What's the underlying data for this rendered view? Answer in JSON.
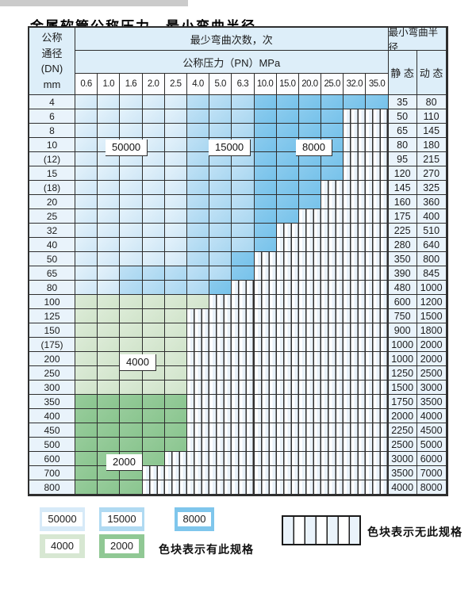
{
  "title": "金属软管公称压力、最小弯曲半径",
  "table": {
    "header": {
      "dn_label_lines": [
        "公称",
        "通径",
        "(DN)",
        "mm"
      ],
      "bend_cycles_label": "最少弯曲次数，次",
      "pressure_label": "公称压力（PN）MPa",
      "min_bend_radius_label": "最小弯曲半径",
      "static_label": "静 态",
      "dynamic_label": "动 态",
      "pressures": [
        "0.6",
        "1.0",
        "1.6",
        "2.0",
        "2.5",
        "4.0",
        "5.0",
        "6.3",
        "10.0",
        "15.0",
        "20.0",
        "25.0",
        "32.0",
        "35.0"
      ]
    },
    "class_key": {
      "A": "50000次弯曲",
      "B": "15000次弯曲",
      "C": "8000次弯曲",
      "D": "4000次弯曲",
      "E": "2000次弯曲",
      "X": "无此规格"
    },
    "rows": [
      {
        "dn": "4",
        "pattern": "AAAAABBBCCCCCC",
        "static": "35",
        "dynamic": "80"
      },
      {
        "dn": "6",
        "pattern": "AAAAABBBCCCCXX",
        "static": "50",
        "dynamic": "110"
      },
      {
        "dn": "8",
        "pattern": "AAAAABBBCCCCXX",
        "static": "65",
        "dynamic": "145"
      },
      {
        "dn": "10",
        "pattern": "AAAAABBBCCCCXX",
        "static": "80",
        "dynamic": "180"
      },
      {
        "dn": "(12)",
        "pattern": "AAAAABBBCCCCXX",
        "static": "95",
        "dynamic": "215"
      },
      {
        "dn": "15",
        "pattern": "AAAAABBBCCCCXX",
        "static": "120",
        "dynamic": "270"
      },
      {
        "dn": "(18)",
        "pattern": "AAAAABBBCCCXXX",
        "static": "145",
        "dynamic": "325"
      },
      {
        "dn": "20",
        "pattern": "AAAAABBBCCCXXX",
        "static": "160",
        "dynamic": "360"
      },
      {
        "dn": "25",
        "pattern": "AAAAABBBCCXXXX",
        "static": "175",
        "dynamic": "400"
      },
      {
        "dn": "32",
        "pattern": "AAAAABBBCXXXXX",
        "static": "225",
        "dynamic": "510"
      },
      {
        "dn": "40",
        "pattern": "AAAAABBBCXXXXX",
        "static": "280",
        "dynamic": "640"
      },
      {
        "dn": "50",
        "pattern": "AAAAABBCXXXXXX",
        "static": "350",
        "dynamic": "800"
      },
      {
        "dn": "65",
        "pattern": "AABBBBBCXXXXXX",
        "static": "390",
        "dynamic": "845"
      },
      {
        "dn": "80",
        "pattern": "AABBBBCXXXXXXX",
        "static": "480",
        "dynamic": "1000"
      },
      {
        "dn": "100",
        "pattern": "DDDDDDXXXXXXXX",
        "static": "600",
        "dynamic": "1200"
      },
      {
        "dn": "125",
        "pattern": "DDDDDXXXXXXXXX",
        "static": "750",
        "dynamic": "1500"
      },
      {
        "dn": "150",
        "pattern": "DDDDDXXXXXXXXX",
        "static": "900",
        "dynamic": "1800"
      },
      {
        "dn": "(175)",
        "pattern": "DDDDDXXXXXXXXX",
        "static": "1000",
        "dynamic": "2000"
      },
      {
        "dn": "200",
        "pattern": "DDDDDXXXXXXXXX",
        "static": "1000",
        "dynamic": "2000"
      },
      {
        "dn": "250",
        "pattern": "DDDDDXXXXXXXXX",
        "static": "1250",
        "dynamic": "2500"
      },
      {
        "dn": "300",
        "pattern": "DDDDDXXXXXXXXX",
        "static": "1500",
        "dynamic": "3000"
      },
      {
        "dn": "350",
        "pattern": "EEEEEXXXXXXXXX",
        "static": "1750",
        "dynamic": "3500"
      },
      {
        "dn": "400",
        "pattern": "EEEEEXXXXXXXXX",
        "static": "2000",
        "dynamic": "4000"
      },
      {
        "dn": "450",
        "pattern": "EEEEEXXXXXXXXX",
        "static": "2250",
        "dynamic": "4500"
      },
      {
        "dn": "500",
        "pattern": "EEEEEXXXXXXXXX",
        "static": "2500",
        "dynamic": "5000"
      },
      {
        "dn": "600",
        "pattern": "EEEEXXXXXXXXXX",
        "static": "3000",
        "dynamic": "6000"
      },
      {
        "dn": "700",
        "pattern": "EEEXXXXXXXXXXX",
        "static": "3500",
        "dynamic": "7000"
      },
      {
        "dn": "800",
        "pattern": "EEEXXXXXXXXXXX",
        "static": "4000",
        "dynamic": "8000"
      }
    ],
    "region_labels": [
      {
        "text": "50000"
      },
      {
        "text": "15000"
      },
      {
        "text": "8000"
      },
      {
        "text": "4000"
      },
      {
        "text": "2000"
      }
    ]
  },
  "legend": {
    "has_spec_items": [
      {
        "value": "50000",
        "color": "#d7eaf8"
      },
      {
        "value": "15000",
        "color": "#b0daf2"
      },
      {
        "value": "8000",
        "color": "#7fc6ec"
      },
      {
        "value": "4000",
        "color": "#d7e7d2"
      },
      {
        "value": "2000",
        "color": "#90c894"
      }
    ],
    "has_spec_label": "色块表示有此规格",
    "no_spec_label": "色块表示无此规格"
  }
}
